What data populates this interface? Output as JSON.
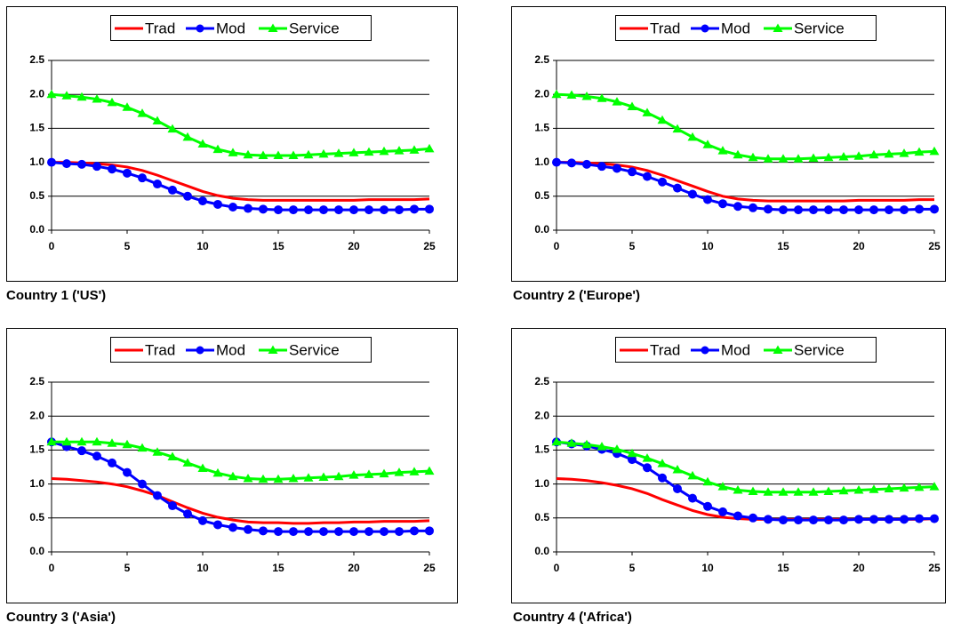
{
  "chart_data": [
    {
      "type": "line",
      "title": "Country 1 ('US')",
      "grid": true,
      "legend": "top",
      "x": [
        0,
        1,
        2,
        3,
        4,
        5,
        6,
        7,
        8,
        9,
        10,
        11,
        12,
        13,
        14,
        15,
        16,
        17,
        18,
        19,
        20,
        21,
        22,
        23,
        24,
        25
      ],
      "xlim": [
        0,
        25
      ],
      "xticks": [
        0,
        5,
        10,
        15,
        20,
        25
      ],
      "ylim": [
        0,
        2.5
      ],
      "yticks": [
        {
          "value": 0,
          "label": "0.0"
        },
        {
          "value": 0.5,
          "label": "0.5"
        },
        {
          "value": 1,
          "label": "1.0"
        },
        {
          "value": 1.5,
          "label": "1.5"
        },
        {
          "value": 2,
          "label": "2.0"
        },
        {
          "value": 2.5,
          "label": "2.5"
        }
      ],
      "series": [
        {
          "name": "Trad",
          "color": "#ff0000",
          "values": [
            1.0,
            1.0,
            0.99,
            0.98,
            0.96,
            0.93,
            0.88,
            0.81,
            0.73,
            0.65,
            0.57,
            0.51,
            0.47,
            0.45,
            0.44,
            0.44,
            0.44,
            0.44,
            0.44,
            0.44,
            0.44,
            0.45,
            0.45,
            0.45,
            0.45,
            0.46
          ]
        },
        {
          "name": "Mod",
          "color": "#0000ff",
          "marker": "circle",
          "values": [
            1.0,
            0.98,
            0.97,
            0.94,
            0.9,
            0.84,
            0.77,
            0.68,
            0.59,
            0.5,
            0.43,
            0.38,
            0.34,
            0.32,
            0.31,
            0.3,
            0.3,
            0.3,
            0.3,
            0.3,
            0.3,
            0.3,
            0.3,
            0.3,
            0.31,
            0.31
          ]
        },
        {
          "name": "Service",
          "color": "#00ff00",
          "marker": "triangle",
          "values": [
            2.0,
            1.98,
            1.96,
            1.93,
            1.88,
            1.81,
            1.72,
            1.61,
            1.49,
            1.37,
            1.27,
            1.19,
            1.14,
            1.11,
            1.1,
            1.1,
            1.1,
            1.11,
            1.12,
            1.13,
            1.14,
            1.15,
            1.16,
            1.17,
            1.18,
            1.2
          ]
        }
      ]
    },
    {
      "type": "line",
      "title": "Country 2 ('Europe')",
      "grid": true,
      "legend": "top",
      "x": [
        0,
        1,
        2,
        3,
        4,
        5,
        6,
        7,
        8,
        9,
        10,
        11,
        12,
        13,
        14,
        15,
        16,
        17,
        18,
        19,
        20,
        21,
        22,
        23,
        24,
        25
      ],
      "xlim": [
        0,
        25
      ],
      "xticks": [
        0,
        5,
        10,
        15,
        20,
        25
      ],
      "ylim": [
        0,
        2.5
      ],
      "yticks": [
        {
          "value": 0,
          "label": "0.0"
        },
        {
          "value": 0.5,
          "label": "0.5"
        },
        {
          "value": 1,
          "label": "1.0"
        },
        {
          "value": 1.5,
          "label": "1.5"
        },
        {
          "value": 2,
          "label": "2.0"
        },
        {
          "value": 2.5,
          "label": "2.5"
        }
      ],
      "series": [
        {
          "name": "Trad",
          "color": "#ff0000",
          "values": [
            1.0,
            1.0,
            0.99,
            0.98,
            0.96,
            0.93,
            0.88,
            0.81,
            0.73,
            0.65,
            0.57,
            0.5,
            0.46,
            0.44,
            0.43,
            0.43,
            0.43,
            0.43,
            0.43,
            0.43,
            0.44,
            0.44,
            0.44,
            0.44,
            0.45,
            0.45
          ]
        },
        {
          "name": "Mod",
          "color": "#0000ff",
          "marker": "circle",
          "values": [
            1.0,
            0.99,
            0.97,
            0.94,
            0.91,
            0.86,
            0.79,
            0.71,
            0.62,
            0.53,
            0.45,
            0.39,
            0.35,
            0.33,
            0.31,
            0.3,
            0.3,
            0.3,
            0.3,
            0.3,
            0.3,
            0.3,
            0.3,
            0.3,
            0.31,
            0.31
          ]
        },
        {
          "name": "Service",
          "color": "#00ff00",
          "marker": "triangle",
          "values": [
            2.0,
            1.99,
            1.97,
            1.94,
            1.89,
            1.82,
            1.73,
            1.62,
            1.49,
            1.37,
            1.26,
            1.17,
            1.11,
            1.07,
            1.05,
            1.05,
            1.05,
            1.06,
            1.07,
            1.08,
            1.09,
            1.11,
            1.12,
            1.13,
            1.15,
            1.16
          ]
        }
      ]
    },
    {
      "type": "line",
      "title": "Country 3 ('Asia')",
      "grid": true,
      "legend": "top",
      "x": [
        0,
        1,
        2,
        3,
        4,
        5,
        6,
        7,
        8,
        9,
        10,
        11,
        12,
        13,
        14,
        15,
        16,
        17,
        18,
        19,
        20,
        21,
        22,
        23,
        24,
        25
      ],
      "xlim": [
        0,
        25
      ],
      "xticks": [
        0,
        5,
        10,
        15,
        20,
        25
      ],
      "ylim": [
        0,
        2.5
      ],
      "yticks": [
        {
          "value": 0,
          "label": "0.0"
        },
        {
          "value": 0.5,
          "label": "0.5"
        },
        {
          "value": 1,
          "label": "1.0"
        },
        {
          "value": 1.5,
          "label": "1.5"
        },
        {
          "value": 2,
          "label": "2.0"
        },
        {
          "value": 2.5,
          "label": "2.5"
        }
      ],
      "series": [
        {
          "name": "Trad",
          "color": "#ff0000",
          "values": [
            1.08,
            1.07,
            1.05,
            1.03,
            1.0,
            0.96,
            0.9,
            0.83,
            0.74,
            0.65,
            0.57,
            0.51,
            0.47,
            0.44,
            0.43,
            0.43,
            0.42,
            0.42,
            0.43,
            0.43,
            0.44,
            0.44,
            0.45,
            0.45,
            0.45,
            0.46
          ]
        },
        {
          "name": "Mod",
          "color": "#0000ff",
          "marker": "circle",
          "values": [
            1.62,
            1.55,
            1.49,
            1.41,
            1.31,
            1.17,
            1.0,
            0.83,
            0.68,
            0.56,
            0.46,
            0.4,
            0.36,
            0.33,
            0.31,
            0.3,
            0.3,
            0.3,
            0.3,
            0.3,
            0.3,
            0.3,
            0.3,
            0.3,
            0.31,
            0.31
          ]
        },
        {
          "name": "Service",
          "color": "#00ff00",
          "marker": "triangle",
          "values": [
            1.62,
            1.62,
            1.62,
            1.62,
            1.6,
            1.58,
            1.53,
            1.47,
            1.4,
            1.31,
            1.23,
            1.16,
            1.11,
            1.08,
            1.07,
            1.07,
            1.08,
            1.09,
            1.1,
            1.11,
            1.13,
            1.14,
            1.15,
            1.17,
            1.18,
            1.19
          ]
        }
      ]
    },
    {
      "type": "line",
      "title": "Country 4 ('Africa')",
      "grid": true,
      "legend": "top",
      "x": [
        0,
        1,
        2,
        3,
        4,
        5,
        6,
        7,
        8,
        9,
        10,
        11,
        12,
        13,
        14,
        15,
        16,
        17,
        18,
        19,
        20,
        21,
        22,
        23,
        24,
        25
      ],
      "xlim": [
        0,
        25
      ],
      "xticks": [
        0,
        5,
        10,
        15,
        20,
        25
      ],
      "ylim": [
        0,
        2.5
      ],
      "yticks": [
        {
          "value": 0,
          "label": "0.0"
        },
        {
          "value": 0.5,
          "label": "0.5"
        },
        {
          "value": 1,
          "label": "1.0"
        },
        {
          "value": 1.5,
          "label": "1.5"
        },
        {
          "value": 2,
          "label": "2.0"
        },
        {
          "value": 2.5,
          "label": "2.5"
        }
      ],
      "series": [
        {
          "name": "Trad",
          "color": "#ff0000",
          "values": [
            1.08,
            1.07,
            1.05,
            1.02,
            0.98,
            0.93,
            0.86,
            0.77,
            0.69,
            0.61,
            0.55,
            0.51,
            0.49,
            0.48,
            0.48,
            0.48,
            0.48,
            0.48,
            0.48,
            0.48,
            0.48,
            0.48,
            0.48,
            0.48,
            0.48,
            0.49
          ]
        },
        {
          "name": "Mod",
          "color": "#0000ff",
          "marker": "circle",
          "values": [
            1.62,
            1.59,
            1.56,
            1.51,
            1.45,
            1.36,
            1.24,
            1.09,
            0.93,
            0.79,
            0.67,
            0.59,
            0.53,
            0.5,
            0.48,
            0.47,
            0.47,
            0.47,
            0.47,
            0.47,
            0.48,
            0.48,
            0.48,
            0.48,
            0.49,
            0.49
          ]
        },
        {
          "name": "Service",
          "color": "#00ff00",
          "marker": "triangle",
          "values": [
            1.62,
            1.6,
            1.58,
            1.55,
            1.51,
            1.45,
            1.38,
            1.3,
            1.21,
            1.12,
            1.03,
            0.96,
            0.91,
            0.89,
            0.88,
            0.88,
            0.88,
            0.88,
            0.89,
            0.9,
            0.91,
            0.92,
            0.93,
            0.94,
            0.95,
            0.96
          ]
        }
      ]
    }
  ]
}
